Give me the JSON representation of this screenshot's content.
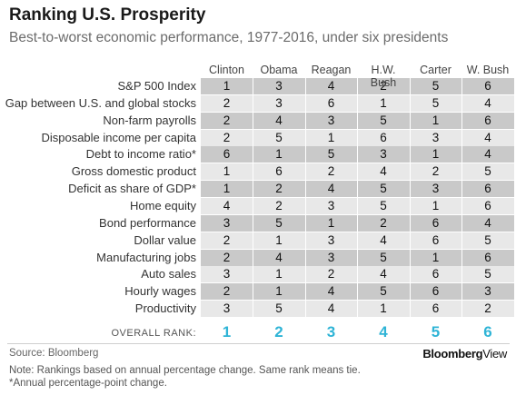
{
  "header": {
    "title": "Ranking U.S. Prosperity",
    "subtitle": "Best-to-worst economic performance, 1977-2016, under six presidents"
  },
  "chart_data": {
    "type": "table",
    "title": "Ranking U.S. Prosperity",
    "columns": [
      "Clinton",
      "Obama",
      "Reagan",
      "H.W. Bush",
      "Carter",
      "W. Bush"
    ],
    "rows": [
      {
        "label": "S&P 500 Index",
        "values": [
          1,
          3,
          4,
          2,
          5,
          6
        ]
      },
      {
        "label": "Gap between U.S. and global stocks",
        "values": [
          2,
          3,
          6,
          1,
          5,
          4
        ]
      },
      {
        "label": "Non-farm payrolls",
        "values": [
          2,
          4,
          3,
          5,
          1,
          6
        ]
      },
      {
        "label": "Disposable income per capita",
        "values": [
          2,
          5,
          1,
          6,
          3,
          4
        ]
      },
      {
        "label": "Debt to income ratio*",
        "values": [
          6,
          1,
          5,
          3,
          1,
          4
        ]
      },
      {
        "label": "Gross domestic product",
        "values": [
          1,
          6,
          2,
          4,
          2,
          5
        ]
      },
      {
        "label": "Deficit as share of GDP*",
        "values": [
          1,
          2,
          4,
          5,
          3,
          6
        ]
      },
      {
        "label": "Home equity",
        "values": [
          4,
          2,
          3,
          5,
          1,
          6
        ]
      },
      {
        "label": "Bond performance",
        "values": [
          3,
          5,
          1,
          2,
          6,
          4
        ]
      },
      {
        "label": "Dollar value",
        "values": [
          2,
          1,
          3,
          4,
          6,
          5
        ]
      },
      {
        "label": "Manufacturing jobs",
        "values": [
          2,
          4,
          3,
          5,
          1,
          6
        ]
      },
      {
        "label": "Auto sales",
        "values": [
          3,
          1,
          2,
          4,
          6,
          5
        ]
      },
      {
        "label": "Hourly wages",
        "values": [
          2,
          1,
          4,
          5,
          6,
          3
        ]
      },
      {
        "label": "Productivity",
        "values": [
          3,
          5,
          4,
          1,
          6,
          2
        ]
      }
    ],
    "overall_label": "OVERALL RANK:",
    "overall_rank": [
      1,
      2,
      3,
      4,
      5,
      6
    ],
    "colors": {
      "band_dark": "#c9c9c9",
      "band_light": "#e8e8e8",
      "overall": "#2fb4d6"
    }
  },
  "footer": {
    "source": "Source: Bloomberg",
    "brand_bold": "Bloomberg",
    "brand_light": "View",
    "note_1": "Note: Rankings based on annual percentage change.  Same rank means tie.",
    "note_2": "*Annual percentage-point change."
  }
}
